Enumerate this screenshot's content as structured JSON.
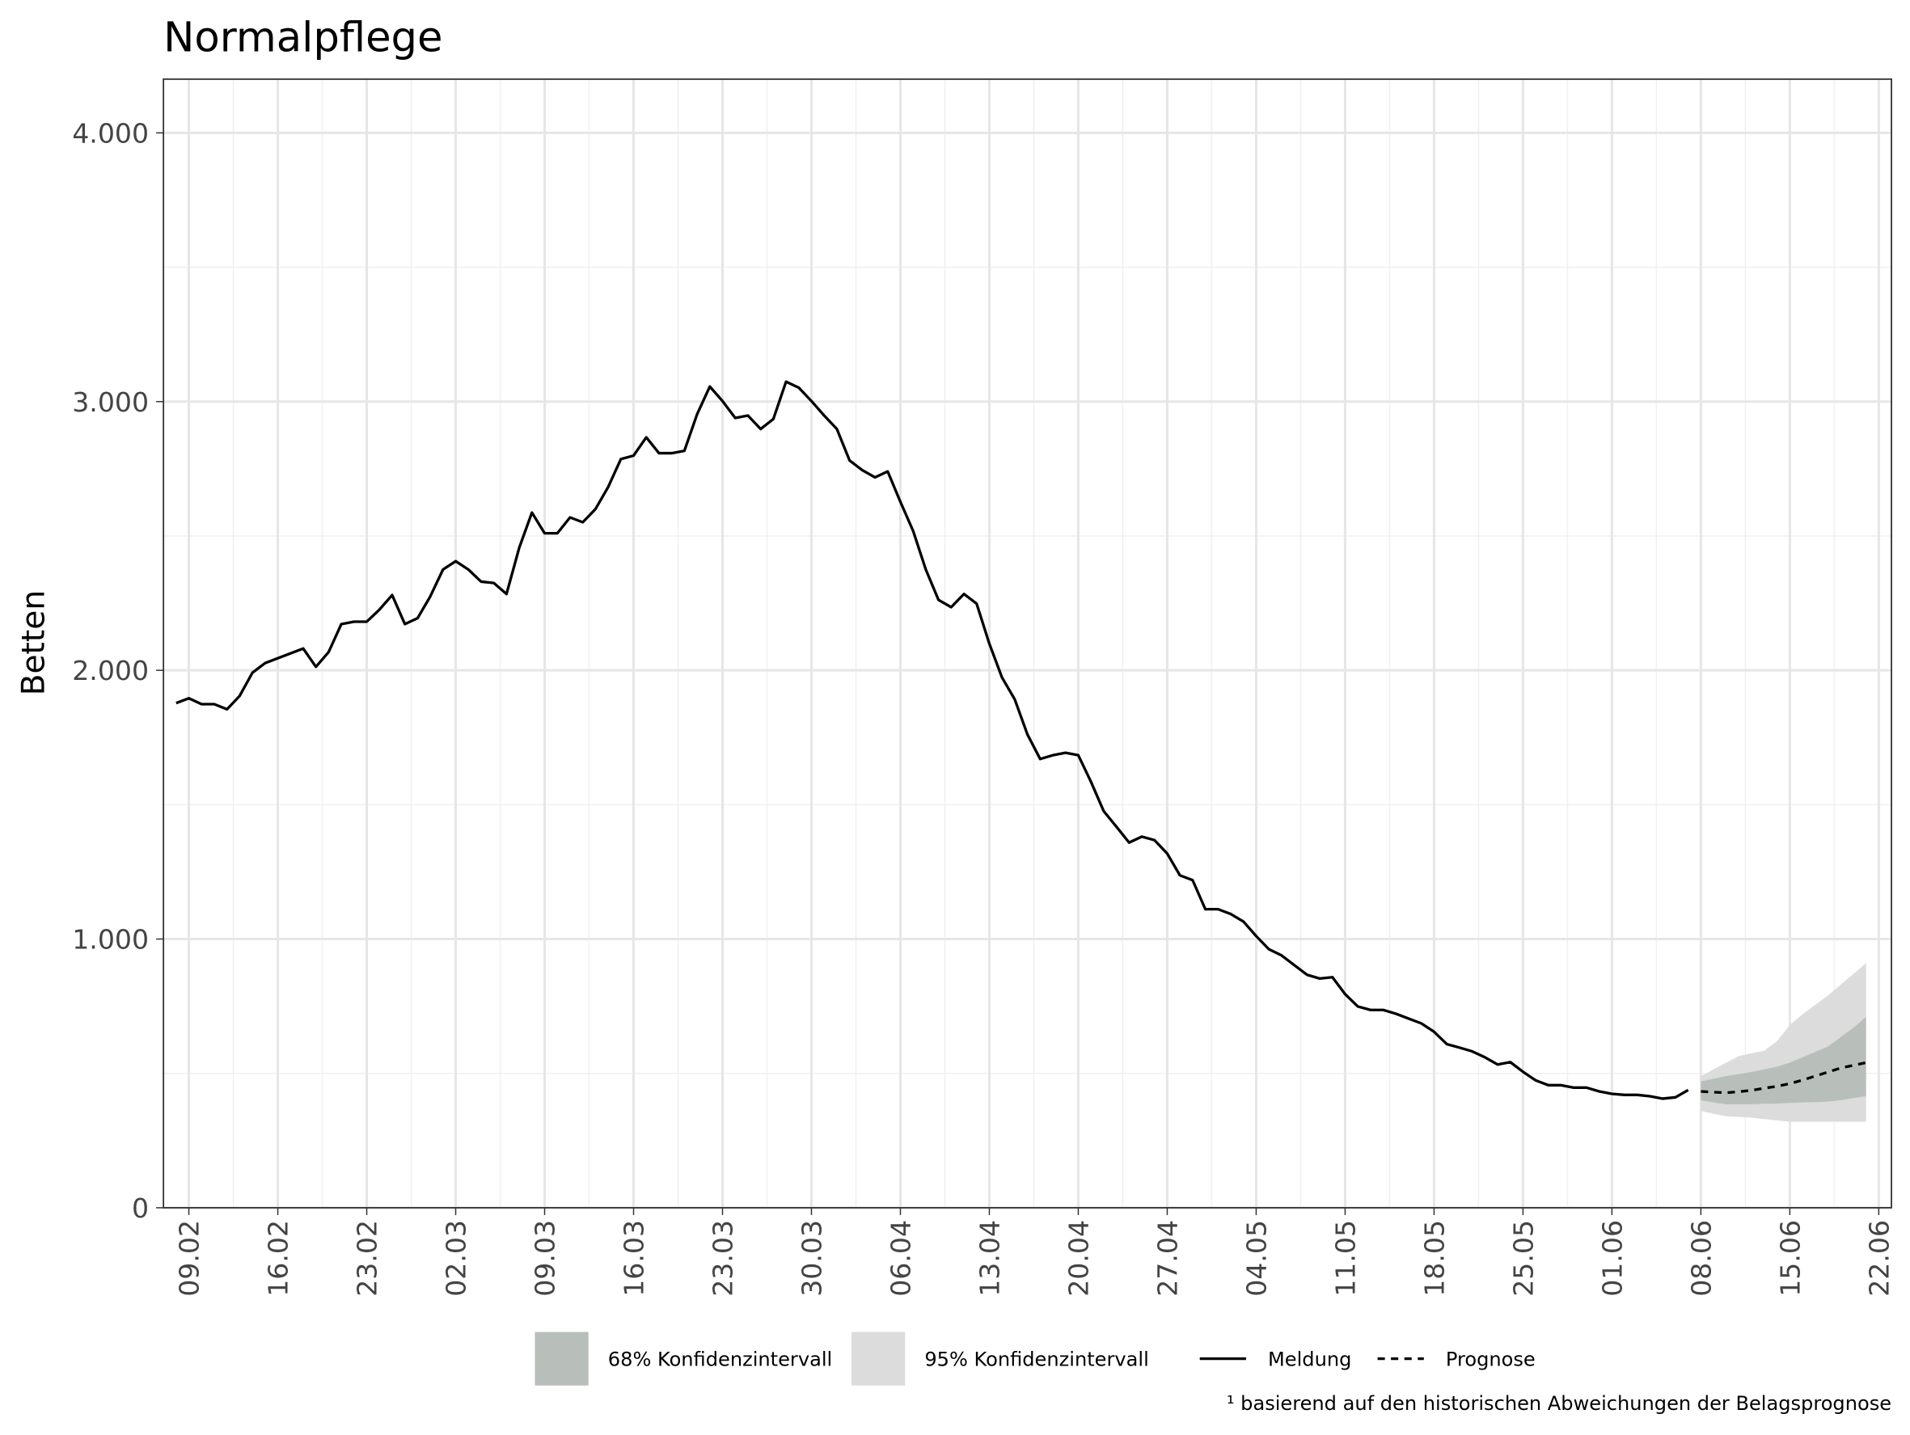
{
  "chart_data": {
    "type": "line",
    "title": "Normalpflege",
    "y_label": "Betten",
    "footnote": "¹ basierend auf den historischen Abweichungen der Belagsprognose",
    "grid": true,
    "xlim": [
      "07.02",
      "23.06"
    ],
    "ylim": [
      0,
      4200
    ],
    "yticks": [
      0,
      {
        "value": 1000,
        "label": "1.000"
      },
      {
        "value": 2000,
        "label": "2.000"
      },
      {
        "value": 3000,
        "label": "3.000"
      },
      {
        "value": 4000,
        "label": "4.000"
      }
    ],
    "xticks": [
      "09.02",
      "16.02",
      "23.02",
      "02.03",
      "09.03",
      "16.03",
      "23.03",
      "30.03",
      "06.04",
      "13.04",
      "20.04",
      "27.04",
      "04.05",
      "11.05",
      "18.05",
      "25.05",
      "01.06",
      "08.06",
      "15.06",
      "22.06"
    ],
    "x": [
      "08.02",
      "09.02",
      "10.02",
      "11.02",
      "12.02",
      "13.02",
      "14.02",
      "15.02",
      "16.02",
      "17.02",
      "18.02",
      "19.02",
      "20.02",
      "21.02",
      "22.02",
      "23.02",
      "24.02",
      "25.02",
      "26.02",
      "27.02",
      "28.02",
      "01.03",
      "02.03",
      "03.03",
      "04.03",
      "05.03",
      "06.03",
      "07.03",
      "08.03",
      "09.03",
      "10.03",
      "11.03",
      "12.03",
      "13.03",
      "14.03",
      "15.03",
      "16.03",
      "17.03",
      "18.03",
      "19.03",
      "20.03",
      "21.03",
      "22.03",
      "23.03",
      "24.03",
      "25.03",
      "26.03",
      "27.03",
      "28.03",
      "29.03",
      "30.03",
      "31.03",
      "01.04",
      "02.04",
      "03.04",
      "04.04",
      "05.04",
      "06.04",
      "07.04",
      "08.04",
      "09.04",
      "10.04",
      "11.04",
      "12.04",
      "13.04",
      "14.04",
      "15.04",
      "16.04",
      "17.04",
      "18.04",
      "19.04",
      "20.04",
      "21.04",
      "22.04",
      "23.04",
      "24.04",
      "25.04",
      "26.04",
      "27.04",
      "28.04",
      "29.04",
      "30.04",
      "01.05",
      "02.05",
      "03.05",
      "04.05",
      "05.05",
      "06.05",
      "07.05",
      "08.05",
      "09.05",
      "10.05",
      "11.05",
      "12.05",
      "13.05",
      "14.05",
      "15.05",
      "16.05",
      "17.05",
      "18.05",
      "19.05",
      "20.05",
      "21.05",
      "22.05",
      "23.05",
      "24.05",
      "25.05",
      "26.05",
      "27.05",
      "28.05",
      "29.05",
      "30.05",
      "31.05",
      "01.06",
      "02.06",
      "03.06",
      "04.06",
      "05.06",
      "06.06",
      "07.06"
    ],
    "series": [
      {
        "name": "Meldung",
        "color": "#000000",
        "dash": false,
        "values": [
          1878,
          1896,
          1874,
          1874,
          1855,
          1905,
          1991,
          2027,
          2045,
          2063,
          2081,
          2013,
          2068,
          2172,
          2181,
          2181,
          2226,
          2280,
          2172,
          2194,
          2275,
          2375,
          2406,
          2375,
          2330,
          2325,
          2284,
          2456,
          2587,
          2510,
          2510,
          2569,
          2551,
          2600,
          2682,
          2786,
          2799,
          2867,
          2808,
          2808,
          2817,
          2953,
          3056,
          3002,
          2939,
          2948,
          2898,
          2935,
          3074,
          3052,
          3002,
          2948,
          2898,
          2781,
          2745,
          2718,
          2740,
          2627,
          2519,
          2375,
          2262,
          2235,
          2284,
          2248,
          2099,
          1973,
          1892,
          1761,
          1670,
          1684,
          1693,
          1684,
          1585,
          1476,
          1418,
          1359,
          1381,
          1368,
          1318,
          1237,
          1219,
          1111,
          1111,
          1093,
          1065,
          1011,
          962,
          939,
          903,
          867,
          853,
          858,
          795,
          749,
          736,
          736,
          722,
          704,
          686,
          655,
          609,
          596,
          582,
          560,
          533,
          542,
          506,
          474,
          456,
          456,
          447,
          447,
          433,
          424,
          420,
          420,
          415,
          406,
          411,
          438
        ]
      },
      {
        "name": "Prognose",
        "color": "#000000",
        "dash": true,
        "x": [
          "08.06",
          "09.06",
          "10.06",
          "11.06",
          "12.06",
          "13.06",
          "14.06",
          "15.06",
          "16.06",
          "17.06",
          "18.06",
          "19.06",
          "20.06",
          "21.06"
        ],
        "values": [
          433,
          430,
          428,
          432,
          437,
          445,
          452,
          462,
          475,
          490,
          505,
          520,
          530,
          540
        ]
      }
    ],
    "bands": [
      {
        "name": "95% Konfidenzintervall",
        "color": "#dcdcdc",
        "x": [
          "08.06",
          "09.06",
          "10.06",
          "11.06",
          "12.06",
          "13.06",
          "14.06",
          "15.06",
          "16.06",
          "17.06",
          "18.06",
          "19.06",
          "20.06",
          "21.06"
        ],
        "lower": [
          360,
          350,
          340,
          338,
          335,
          330,
          325,
          320,
          320,
          320,
          320,
          320,
          320,
          320
        ],
        "upper": [
          490,
          515,
          540,
          565,
          575,
          585,
          620,
          680,
          720,
          755,
          790,
          830,
          870,
          910
        ]
      },
      {
        "name": "68% Konfidenzintervall",
        "color": "#b8bfbb",
        "x": [
          "08.06",
          "09.06",
          "10.06",
          "11.06",
          "12.06",
          "13.06",
          "14.06",
          "15.06",
          "16.06",
          "17.06",
          "18.06",
          "19.06",
          "20.06",
          "21.06"
        ],
        "lower": [
          400,
          392,
          385,
          385,
          385,
          387,
          388,
          390,
          392,
          393,
          395,
          400,
          408,
          415
        ],
        "upper": [
          470,
          480,
          490,
          498,
          505,
          515,
          525,
          540,
          560,
          580,
          600,
          635,
          670,
          710
        ]
      }
    ]
  }
}
